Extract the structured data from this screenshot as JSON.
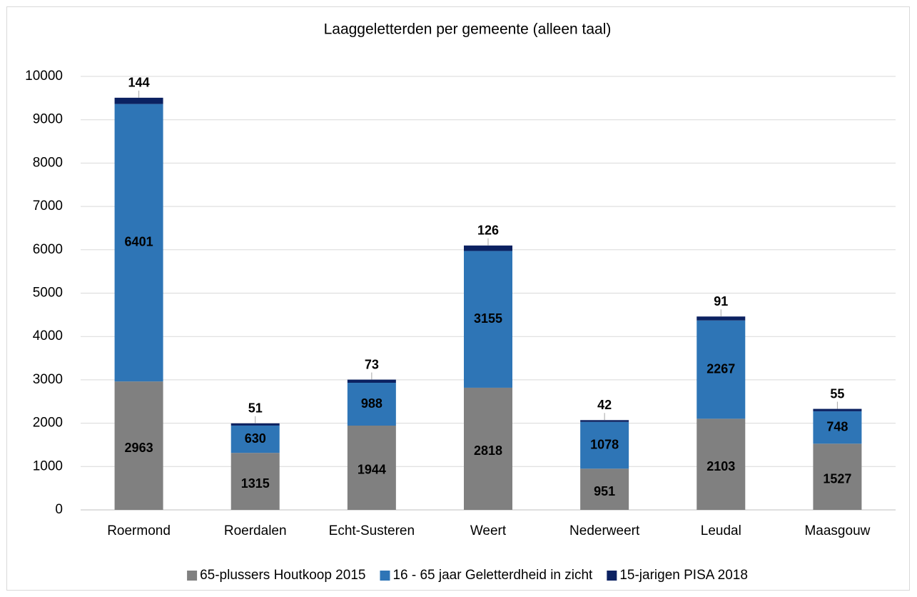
{
  "chart_data": {
    "type": "stacked_bar",
    "title": "Laaggeletterden per gemeente (alleen taal)",
    "categories": [
      "Roermond",
      "Roerdalen",
      "Echt-Susteren",
      "Weert",
      "Nederweert",
      "Leudal",
      "Maasgouw"
    ],
    "series": [
      {
        "name": "65-plussers Houtkoop 2015",
        "color": "#808080",
        "values": [
          2963,
          1315,
          1944,
          2818,
          951,
          2103,
          1527
        ]
      },
      {
        "name": "16 - 65 jaar Geletterdheid in zicht",
        "color": "#2e75b6",
        "values": [
          6401,
          630,
          988,
          3155,
          1078,
          2267,
          748
        ]
      },
      {
        "name": "15-jarigen PISA 2018",
        "color": "#0b2161",
        "values": [
          144,
          51,
          73,
          126,
          42,
          91,
          55
        ]
      }
    ],
    "ylim": [
      0,
      10000
    ],
    "yticks": [
      0,
      1000,
      2000,
      3000,
      4000,
      5000,
      6000,
      7000,
      8000,
      9000,
      10000
    ],
    "grid": true,
    "legend": "bottom"
  }
}
